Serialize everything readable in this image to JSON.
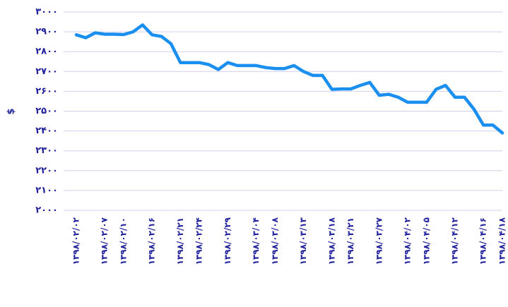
{
  "chart_data": {
    "type": "line",
    "y_label": "$",
    "categories": [
      "۱۳۹۸/۰۲/۰۲",
      null,
      null,
      "۱۳۹۸/۰۲/۰۷",
      null,
      "۱۳۹۸/۰۲/۱۰",
      null,
      null,
      "۱۳۹۸/۰۲/۱۶",
      null,
      null,
      "۱۳۹۸/۰۲/۲۱",
      null,
      "۱۳۹۸/۰۲/۲۴",
      null,
      null,
      "۱۳۹۸/۰۲/۲۹",
      null,
      null,
      "۱۳۹۸/۰۳/۰۴",
      null,
      "۱۳۹۸/۰۳/۰۸",
      null,
      null,
      "۱۳۹۸/۰۳/۱۳",
      null,
      null,
      "۱۳۹۸/۰۳/۱۸",
      null,
      "۱۳۹۸/۰۳/۲۱",
      null,
      null,
      "۱۳۹۸/۰۳/۲۷",
      null,
      null,
      "۱۳۹۸/۰۴/۰۲",
      null,
      "۱۳۹۸/۰۴/۰۵",
      null,
      null,
      "۱۳۹۸/۰۴/۱۲",
      null,
      null,
      "۱۳۹۸/۰۴/۱۶",
      null,
      "۱۳۹۸/۰۴/۱۸"
    ],
    "series": [
      {
        "name": "$",
        "color": "#1b8ff0",
        "values": [
          2885,
          2870,
          2895,
          2888,
          2888,
          2886,
          2900,
          2935,
          2885,
          2877,
          2840,
          2745,
          2745,
          2745,
          2735,
          2710,
          2745,
          2730,
          2730,
          2730,
          2720,
          2715,
          2715,
          2730,
          2700,
          2680,
          2680,
          2610,
          2612,
          2612,
          2630,
          2645,
          2580,
          2585,
          2570,
          2545,
          2545,
          2545,
          2610,
          2630,
          2570,
          2570,
          2510,
          2430,
          2430,
          2390
        ]
      }
    ],
    "ylim": [
      2000,
      3000
    ],
    "yticks": [
      {
        "value": 2000,
        "label": "۲۰۰۰"
      },
      {
        "value": 2100,
        "label": "۲۱۰۰"
      },
      {
        "value": 2200,
        "label": "۲۲۰۰"
      },
      {
        "value": 2300,
        "label": "۲۳۰۰"
      },
      {
        "value": 2400,
        "label": "۲۴۰۰"
      },
      {
        "value": 2500,
        "label": "۲۵۰۰"
      },
      {
        "value": 2600,
        "label": "۲۶۰۰"
      },
      {
        "value": 2700,
        "label": "۲۷۰۰"
      },
      {
        "value": 2800,
        "label": "۲۸۰۰"
      },
      {
        "value": 2900,
        "label": "۲۹۰۰"
      },
      {
        "value": 3000,
        "label": "۳۰۰۰"
      }
    ],
    "grid": true
  }
}
